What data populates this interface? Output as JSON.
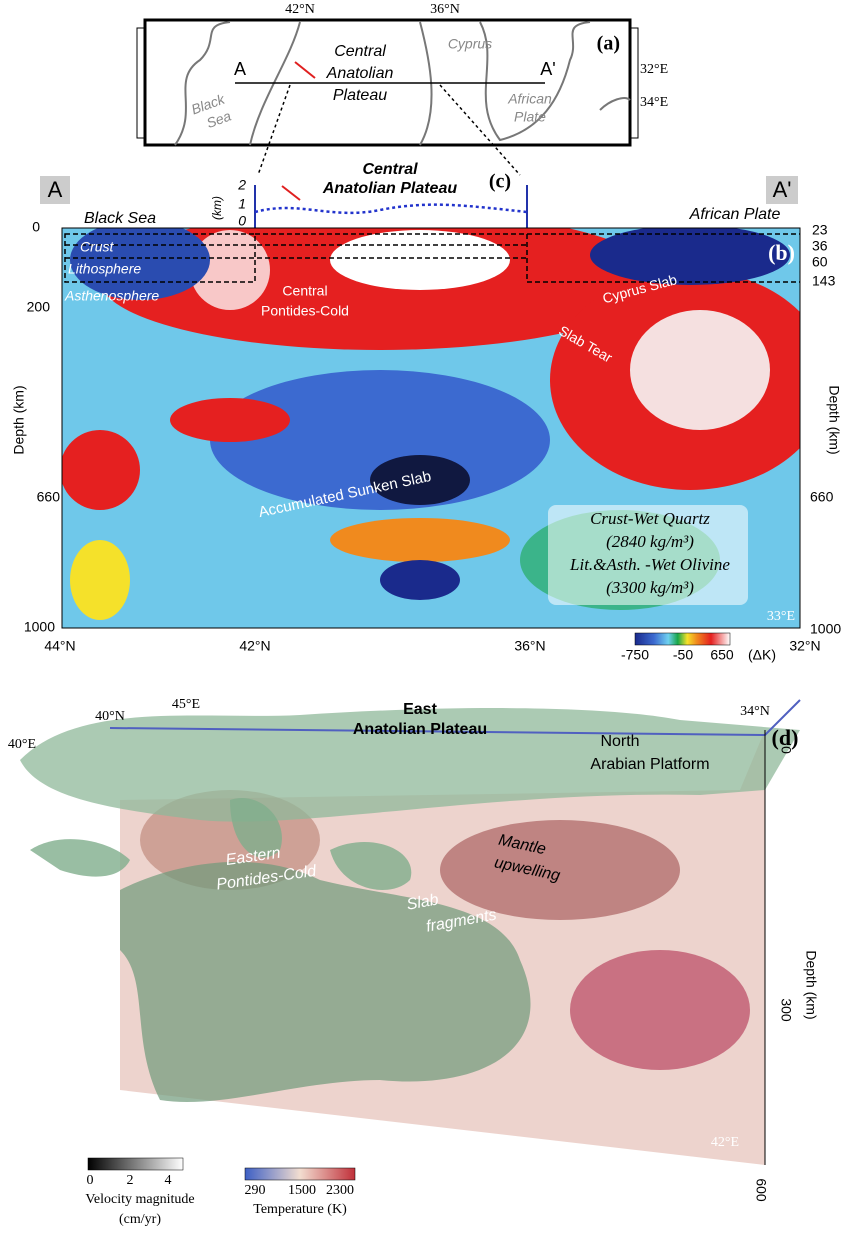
{
  "panel_a": {
    "label": "(a)",
    "lat_labels": [
      "42°N",
      "36°N"
    ],
    "lon_labels": [
      "32°E",
      "34°E"
    ],
    "profile_start": "A",
    "profile_end": "A'",
    "region": [
      "Central",
      "Anatolian",
      "Plateau"
    ],
    "cyprus": "Cyprus",
    "black_sea": [
      "Black",
      "Sea"
    ],
    "african_plate": [
      "African",
      "Plate"
    ]
  },
  "panel_c": {
    "label": "(c)",
    "title": [
      "Central",
      "Anatolian Plateau"
    ],
    "unit": "(km)",
    "ticks": [
      "2",
      "1",
      "0"
    ]
  },
  "panel_b": {
    "label": "(b)",
    "start": "A",
    "end": "A'",
    "black_sea": "Black Sea",
    "african_plate": "African Plate",
    "y_label": "Depth (km)",
    "y_ticks_left": [
      "0",
      "200",
      "660",
      "1000"
    ],
    "y_ticks_right": [
      "23",
      "36",
      "60",
      "143",
      "660",
      "1000"
    ],
    "x_ticks": [
      "44°N",
      "42°N",
      "36°N",
      "32°N"
    ],
    "layers": [
      "Crust",
      "Lithosphere",
      "Asthenosphere"
    ],
    "features": [
      "Central",
      "Pontides-Cold",
      "Cyprus Slab",
      "Slab Tear",
      "Accumulated  Sunken Slab"
    ],
    "longitude": "33°E",
    "rheology": [
      "Crust-Wet Quartz",
      "(2840 kg/m³)",
      "Lit.&Asth. -Wet Olivine",
      "(3300 kg/m³)"
    ],
    "colorbar_ticks": [
      "-750",
      "-50",
      "650"
    ],
    "colorbar_unit": "(ΔK)"
  },
  "panel_d": {
    "label": "(d)",
    "corner_labels": [
      "45°E",
      "40°N",
      "40°E",
      "34°N",
      "42°E"
    ],
    "title": [
      "East",
      "Anatolian Plateau"
    ],
    "platform": [
      "North",
      "Arabian Platform"
    ],
    "features": [
      "Mantle",
      "upwelling",
      "Eastern",
      "Pontides-Cold",
      "Slab",
      "fragments"
    ],
    "depth_label": "Depth (km)",
    "depth_ticks": [
      "0",
      "300",
      "600"
    ],
    "velocity_ticks": [
      "0",
      "2",
      "4"
    ],
    "velocity_label": [
      "Velocity magnitude",
      "(cm/yr)"
    ],
    "temperature_ticks": [
      "290",
      "1500",
      "2300"
    ],
    "temperature_label": "Temperature (K)"
  }
}
